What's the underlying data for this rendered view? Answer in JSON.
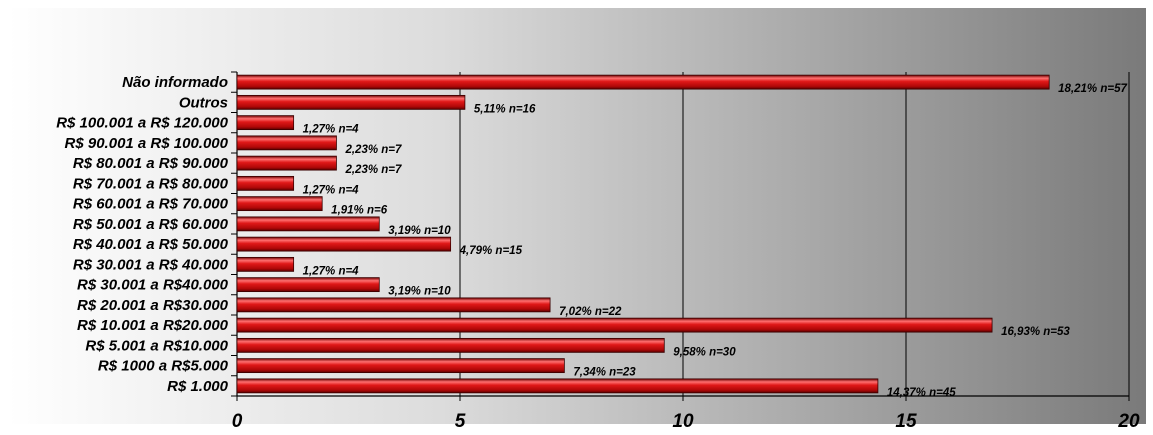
{
  "chart_data": {
    "type": "bar",
    "orientation": "horizontal",
    "categories": [
      "Não informado",
      "Outros",
      "R$ 100.001 a R$ 120.000",
      "R$ 90.001 a R$ 100.000",
      "R$ 80.001 a R$ 90.000",
      "R$ 70.001 a R$ 80.000",
      "R$ 60.001 a R$ 70.000",
      "R$ 50.001 a R$ 60.000",
      "R$ 40.001 a R$ 50.000",
      "R$ 30.001 a R$ 40.000",
      "R$ 30.001 a R$40.000",
      "R$ 20.001 a R$30.000",
      "R$ 10.001 a R$20.000",
      "R$ 5.001 a R$10.000",
      "R$ 1000 a R$5.000",
      "R$ 1.000"
    ],
    "values": [
      18.21,
      5.11,
      1.27,
      2.23,
      2.23,
      1.27,
      1.91,
      3.19,
      4.79,
      1.27,
      3.19,
      7.02,
      16.93,
      9.58,
      7.34,
      14.37
    ],
    "data_labels": [
      "18,21% n=57",
      "5,11% n=16",
      "1,27% n=4",
      "2,23% n=7",
      "2,23% n=7",
      "1,27% n=4",
      "1,91% n=6",
      "3,19% n=10",
      "4,79% n=15",
      "1,27% n=4",
      "3,19% n=10",
      "7,02% n=22",
      "16,93% n=53",
      "9,58% n=30",
      "7,34% n=23",
      "14,37% n=45"
    ],
    "x_ticks": [
      "0",
      "5",
      "10",
      "15",
      "20"
    ],
    "xlim": [
      0,
      20
    ],
    "grid": "vertical",
    "legend": "none",
    "title": "",
    "xlabel": "",
    "ylabel": ""
  },
  "colors": {
    "bar_fill": "#cc1111",
    "bar_dark": "#6e0000",
    "bar_light": "#ff6a6a",
    "background_light": "#ffffff",
    "background_dark": "#7a7a7a",
    "grid": "#000000"
  }
}
